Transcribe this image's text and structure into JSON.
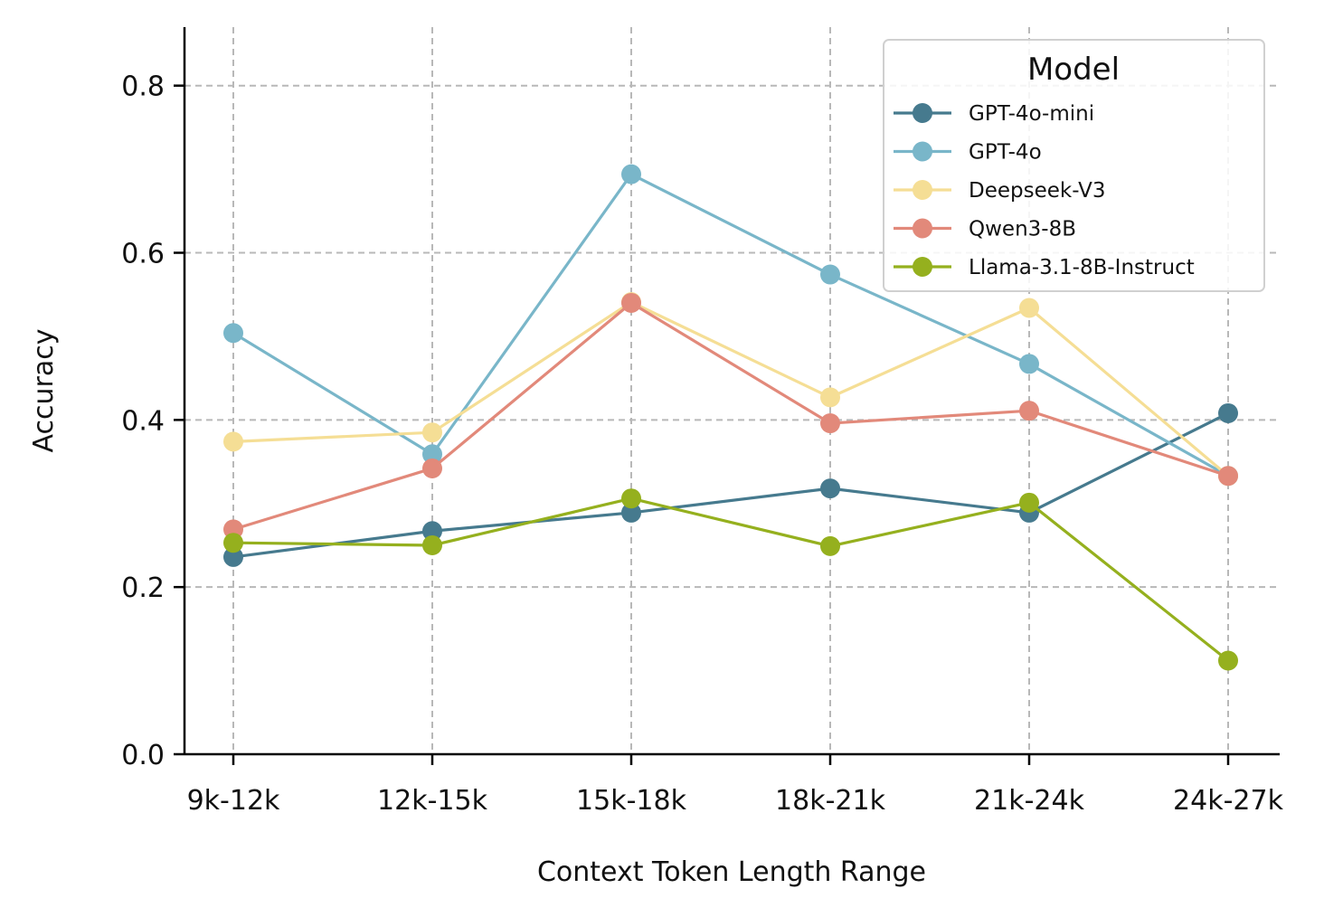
{
  "chart_data": {
    "type": "line",
    "title": "",
    "xlabel": "Context Token Length Range",
    "ylabel": "Accuracy",
    "categories": [
      "9k-12k",
      "12k-15k",
      "15k-18k",
      "18k-21k",
      "21k-24k",
      "24k-27k"
    ],
    "ylim": [
      0,
      0.87
    ],
    "yticks": [
      0.0,
      0.2,
      0.4,
      0.6,
      0.8
    ],
    "ytick_labels": [
      "0.0",
      "0.2",
      "0.4",
      "0.6",
      "0.8"
    ],
    "grid": true,
    "legend": {
      "title": "Model",
      "position": "top-right"
    },
    "series": [
      {
        "name": "GPT-4o-mini",
        "color": "#467a8e",
        "values": [
          0.236,
          0.267,
          0.289,
          0.318,
          0.289,
          0.408
        ]
      },
      {
        "name": "GPT-4o",
        "color": "#79b6c9",
        "values": [
          0.504,
          0.359,
          0.694,
          0.574,
          0.467,
          0.333
        ]
      },
      {
        "name": "Deepseek-V3",
        "color": "#f5de95",
        "values": [
          0.374,
          0.385,
          0.541,
          0.427,
          0.534,
          0.333
        ]
      },
      {
        "name": "Qwen3-8B",
        "color": "#e2897a",
        "values": [
          0.269,
          0.342,
          0.54,
          0.396,
          0.411,
          0.333
        ]
      },
      {
        "name": "Llama-3.1-8B-Instruct",
        "color": "#95b01e",
        "values": [
          0.253,
          0.25,
          0.306,
          0.249,
          0.301,
          0.112
        ]
      }
    ]
  }
}
